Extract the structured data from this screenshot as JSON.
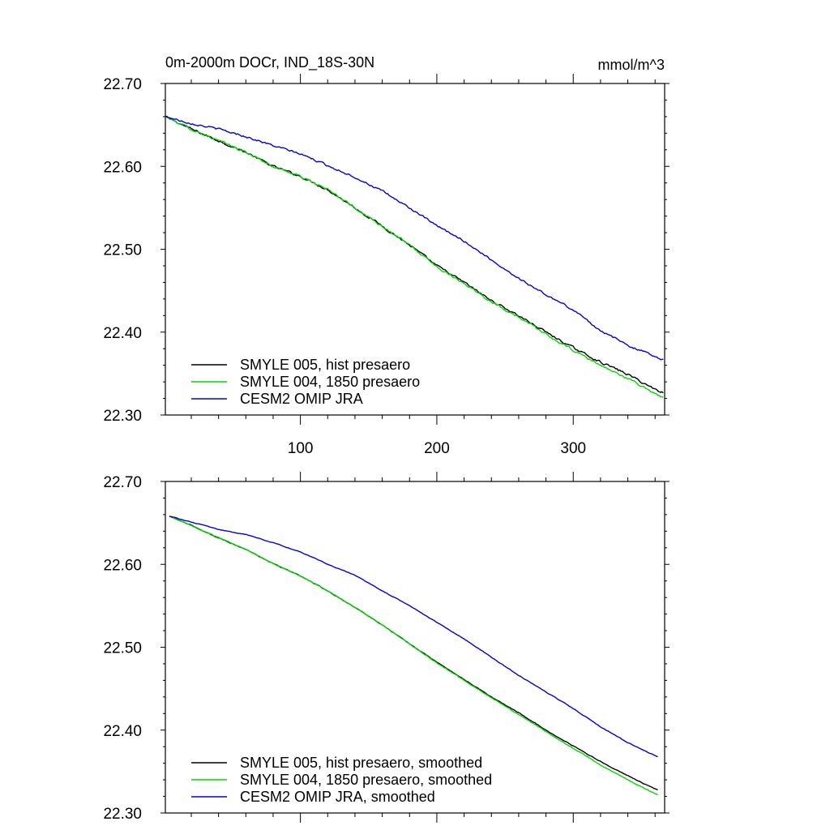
{
  "chart_data": [
    {
      "type": "line",
      "title": "0m-2000m DOCr, IND_18S-30N",
      "units": "mmol/m^3",
      "xlim": [
        1,
        367
      ],
      "ylim": [
        22.3,
        22.7
      ],
      "x_ticks": [
        100,
        200,
        300
      ],
      "x_tick_labels": [
        "100",
        "200",
        "300"
      ],
      "show_x_tick_labels": true,
      "y_ticks": [
        22.3,
        22.4,
        22.5,
        22.6,
        22.7
      ],
      "y_tick_labels": [
        "22.30",
        "22.40",
        "22.50",
        "22.60",
        "22.70"
      ],
      "grid": false,
      "legend_position": "bottom-left",
      "series": [
        {
          "name": "SMYLE 005, hist presaero",
          "color": "#000000",
          "noise": 0.0025,
          "x": [
            1,
            20,
            40,
            60,
            80,
            100,
            120,
            140,
            160,
            180,
            200,
            220,
            240,
            260,
            280,
            300,
            320,
            340,
            360,
            366
          ],
          "values": [
            22.66,
            22.645,
            22.631,
            22.617,
            22.6,
            22.588,
            22.572,
            22.55,
            22.528,
            22.505,
            22.48,
            22.46,
            22.438,
            22.42,
            22.4,
            22.381,
            22.364,
            22.349,
            22.331,
            22.327
          ]
        },
        {
          "name": "SMYLE 004, 1850 presaero",
          "color": "#00d800",
          "noise": 0.0025,
          "x": [
            1,
            20,
            40,
            60,
            80,
            100,
            120,
            140,
            160,
            180,
            200,
            220,
            240,
            260,
            280,
            300,
            320,
            340,
            360,
            366
          ],
          "values": [
            22.66,
            22.645,
            22.631,
            22.617,
            22.6,
            22.588,
            22.572,
            22.55,
            22.528,
            22.505,
            22.479,
            22.459,
            22.437,
            22.418,
            22.397,
            22.378,
            22.36,
            22.344,
            22.326,
            22.321
          ]
        },
        {
          "name": "CESM2 OMIP JRA",
          "color": "#0000e0",
          "noise": 0.0022,
          "x": [
            1,
            20,
            40,
            60,
            80,
            100,
            120,
            140,
            160,
            180,
            200,
            220,
            240,
            260,
            280,
            300,
            320,
            340,
            360,
            366
          ],
          "values": [
            22.66,
            22.652,
            22.645,
            22.636,
            22.625,
            22.615,
            22.601,
            22.587,
            22.57,
            22.55,
            22.528,
            22.51,
            22.487,
            22.465,
            22.445,
            22.427,
            22.402,
            22.384,
            22.371,
            22.367
          ]
        }
      ]
    },
    {
      "type": "line",
      "title": "",
      "units": "",
      "xlim": [
        1,
        367
      ],
      "ylim": [
        22.3,
        22.7
      ],
      "x_ticks": [
        100,
        200,
        300
      ],
      "x_tick_labels": [
        "100",
        "200",
        "300"
      ],
      "show_x_tick_labels": false,
      "y_ticks": [
        22.3,
        22.4,
        22.5,
        22.6,
        22.7
      ],
      "y_tick_labels": [
        "22.30",
        "22.40",
        "22.50",
        "22.60",
        "22.70"
      ],
      "grid": false,
      "legend_position": "bottom-left",
      "series": [
        {
          "name": "SMYLE 005, hist presaero, smoothed",
          "color": "#000000",
          "noise": 0.0008,
          "x": [
            4,
            20,
            40,
            60,
            80,
            100,
            120,
            140,
            160,
            180,
            200,
            220,
            240,
            260,
            280,
            300,
            320,
            340,
            360,
            362
          ],
          "values": [
            22.658,
            22.647,
            22.632,
            22.618,
            22.601,
            22.586,
            22.568,
            22.548,
            22.527,
            22.504,
            22.482,
            22.461,
            22.44,
            22.421,
            22.4,
            22.381,
            22.362,
            22.345,
            22.329,
            22.328
          ]
        },
        {
          "name": "SMYLE 004, 1850 presaero, smoothed",
          "color": "#00d800",
          "noise": 0.0008,
          "x": [
            4,
            20,
            40,
            60,
            80,
            100,
            120,
            140,
            160,
            180,
            200,
            220,
            240,
            260,
            280,
            300,
            320,
            340,
            360,
            362
          ],
          "values": [
            22.658,
            22.647,
            22.632,
            22.618,
            22.601,
            22.586,
            22.568,
            22.548,
            22.527,
            22.504,
            22.481,
            22.46,
            22.439,
            22.419,
            22.398,
            22.378,
            22.358,
            22.34,
            22.323,
            22.322
          ]
        },
        {
          "name": "CESM2 OMIP JRA, smoothed",
          "color": "#0000e0",
          "noise": 0.0007,
          "x": [
            4,
            20,
            40,
            60,
            80,
            100,
            120,
            140,
            160,
            180,
            200,
            220,
            240,
            260,
            280,
            300,
            320,
            340,
            360,
            362
          ],
          "values": [
            22.658,
            22.651,
            22.642,
            22.636,
            22.626,
            22.615,
            22.6,
            22.587,
            22.568,
            22.55,
            22.53,
            22.51,
            22.488,
            22.466,
            22.446,
            22.426,
            22.404,
            22.385,
            22.369,
            22.368
          ]
        }
      ]
    }
  ]
}
